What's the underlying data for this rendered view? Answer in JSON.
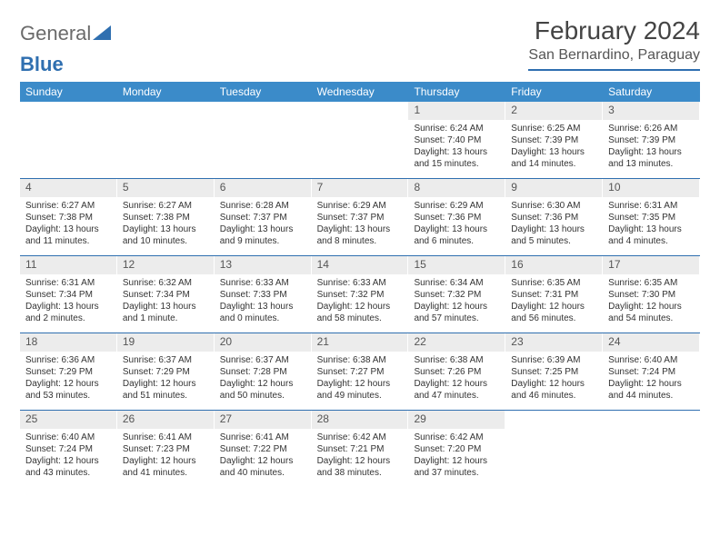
{
  "header": {
    "logo_gray": "General",
    "logo_blue": "Blue",
    "title": "February 2024",
    "subtitle": "San Bernardino, Paraguay"
  },
  "colors": {
    "header_bar": "#3b8bc9",
    "rule": "#2f6fb0",
    "daynum_bg": "#ececec",
    "text": "#333333",
    "white": "#ffffff"
  },
  "weekdays": [
    "Sunday",
    "Monday",
    "Tuesday",
    "Wednesday",
    "Thursday",
    "Friday",
    "Saturday"
  ],
  "weeks": [
    [
      {
        "n": "",
        "sr": "",
        "ss": "",
        "d1": "",
        "d2": ""
      },
      {
        "n": "",
        "sr": "",
        "ss": "",
        "d1": "",
        "d2": ""
      },
      {
        "n": "",
        "sr": "",
        "ss": "",
        "d1": "",
        "d2": ""
      },
      {
        "n": "",
        "sr": "",
        "ss": "",
        "d1": "",
        "d2": ""
      },
      {
        "n": "1",
        "sr": "Sunrise: 6:24 AM",
        "ss": "Sunset: 7:40 PM",
        "d1": "Daylight: 13 hours",
        "d2": "and 15 minutes."
      },
      {
        "n": "2",
        "sr": "Sunrise: 6:25 AM",
        "ss": "Sunset: 7:39 PM",
        "d1": "Daylight: 13 hours",
        "d2": "and 14 minutes."
      },
      {
        "n": "3",
        "sr": "Sunrise: 6:26 AM",
        "ss": "Sunset: 7:39 PM",
        "d1": "Daylight: 13 hours",
        "d2": "and 13 minutes."
      }
    ],
    [
      {
        "n": "4",
        "sr": "Sunrise: 6:27 AM",
        "ss": "Sunset: 7:38 PM",
        "d1": "Daylight: 13 hours",
        "d2": "and 11 minutes."
      },
      {
        "n": "5",
        "sr": "Sunrise: 6:27 AM",
        "ss": "Sunset: 7:38 PM",
        "d1": "Daylight: 13 hours",
        "d2": "and 10 minutes."
      },
      {
        "n": "6",
        "sr": "Sunrise: 6:28 AM",
        "ss": "Sunset: 7:37 PM",
        "d1": "Daylight: 13 hours",
        "d2": "and 9 minutes."
      },
      {
        "n": "7",
        "sr": "Sunrise: 6:29 AM",
        "ss": "Sunset: 7:37 PM",
        "d1": "Daylight: 13 hours",
        "d2": "and 8 minutes."
      },
      {
        "n": "8",
        "sr": "Sunrise: 6:29 AM",
        "ss": "Sunset: 7:36 PM",
        "d1": "Daylight: 13 hours",
        "d2": "and 6 minutes."
      },
      {
        "n": "9",
        "sr": "Sunrise: 6:30 AM",
        "ss": "Sunset: 7:36 PM",
        "d1": "Daylight: 13 hours",
        "d2": "and 5 minutes."
      },
      {
        "n": "10",
        "sr": "Sunrise: 6:31 AM",
        "ss": "Sunset: 7:35 PM",
        "d1": "Daylight: 13 hours",
        "d2": "and 4 minutes."
      }
    ],
    [
      {
        "n": "11",
        "sr": "Sunrise: 6:31 AM",
        "ss": "Sunset: 7:34 PM",
        "d1": "Daylight: 13 hours",
        "d2": "and 2 minutes."
      },
      {
        "n": "12",
        "sr": "Sunrise: 6:32 AM",
        "ss": "Sunset: 7:34 PM",
        "d1": "Daylight: 13 hours",
        "d2": "and 1 minute."
      },
      {
        "n": "13",
        "sr": "Sunrise: 6:33 AM",
        "ss": "Sunset: 7:33 PM",
        "d1": "Daylight: 13 hours",
        "d2": "and 0 minutes."
      },
      {
        "n": "14",
        "sr": "Sunrise: 6:33 AM",
        "ss": "Sunset: 7:32 PM",
        "d1": "Daylight: 12 hours",
        "d2": "and 58 minutes."
      },
      {
        "n": "15",
        "sr": "Sunrise: 6:34 AM",
        "ss": "Sunset: 7:32 PM",
        "d1": "Daylight: 12 hours",
        "d2": "and 57 minutes."
      },
      {
        "n": "16",
        "sr": "Sunrise: 6:35 AM",
        "ss": "Sunset: 7:31 PM",
        "d1": "Daylight: 12 hours",
        "d2": "and 56 minutes."
      },
      {
        "n": "17",
        "sr": "Sunrise: 6:35 AM",
        "ss": "Sunset: 7:30 PM",
        "d1": "Daylight: 12 hours",
        "d2": "and 54 minutes."
      }
    ],
    [
      {
        "n": "18",
        "sr": "Sunrise: 6:36 AM",
        "ss": "Sunset: 7:29 PM",
        "d1": "Daylight: 12 hours",
        "d2": "and 53 minutes."
      },
      {
        "n": "19",
        "sr": "Sunrise: 6:37 AM",
        "ss": "Sunset: 7:29 PM",
        "d1": "Daylight: 12 hours",
        "d2": "and 51 minutes."
      },
      {
        "n": "20",
        "sr": "Sunrise: 6:37 AM",
        "ss": "Sunset: 7:28 PM",
        "d1": "Daylight: 12 hours",
        "d2": "and 50 minutes."
      },
      {
        "n": "21",
        "sr": "Sunrise: 6:38 AM",
        "ss": "Sunset: 7:27 PM",
        "d1": "Daylight: 12 hours",
        "d2": "and 49 minutes."
      },
      {
        "n": "22",
        "sr": "Sunrise: 6:38 AM",
        "ss": "Sunset: 7:26 PM",
        "d1": "Daylight: 12 hours",
        "d2": "and 47 minutes."
      },
      {
        "n": "23",
        "sr": "Sunrise: 6:39 AM",
        "ss": "Sunset: 7:25 PM",
        "d1": "Daylight: 12 hours",
        "d2": "and 46 minutes."
      },
      {
        "n": "24",
        "sr": "Sunrise: 6:40 AM",
        "ss": "Sunset: 7:24 PM",
        "d1": "Daylight: 12 hours",
        "d2": "and 44 minutes."
      }
    ],
    [
      {
        "n": "25",
        "sr": "Sunrise: 6:40 AM",
        "ss": "Sunset: 7:24 PM",
        "d1": "Daylight: 12 hours",
        "d2": "and 43 minutes."
      },
      {
        "n": "26",
        "sr": "Sunrise: 6:41 AM",
        "ss": "Sunset: 7:23 PM",
        "d1": "Daylight: 12 hours",
        "d2": "and 41 minutes."
      },
      {
        "n": "27",
        "sr": "Sunrise: 6:41 AM",
        "ss": "Sunset: 7:22 PM",
        "d1": "Daylight: 12 hours",
        "d2": "and 40 minutes."
      },
      {
        "n": "28",
        "sr": "Sunrise: 6:42 AM",
        "ss": "Sunset: 7:21 PM",
        "d1": "Daylight: 12 hours",
        "d2": "and 38 minutes."
      },
      {
        "n": "29",
        "sr": "Sunrise: 6:42 AM",
        "ss": "Sunset: 7:20 PM",
        "d1": "Daylight: 12 hours",
        "d2": "and 37 minutes."
      },
      {
        "n": "",
        "sr": "",
        "ss": "",
        "d1": "",
        "d2": ""
      },
      {
        "n": "",
        "sr": "",
        "ss": "",
        "d1": "",
        "d2": ""
      }
    ]
  ]
}
